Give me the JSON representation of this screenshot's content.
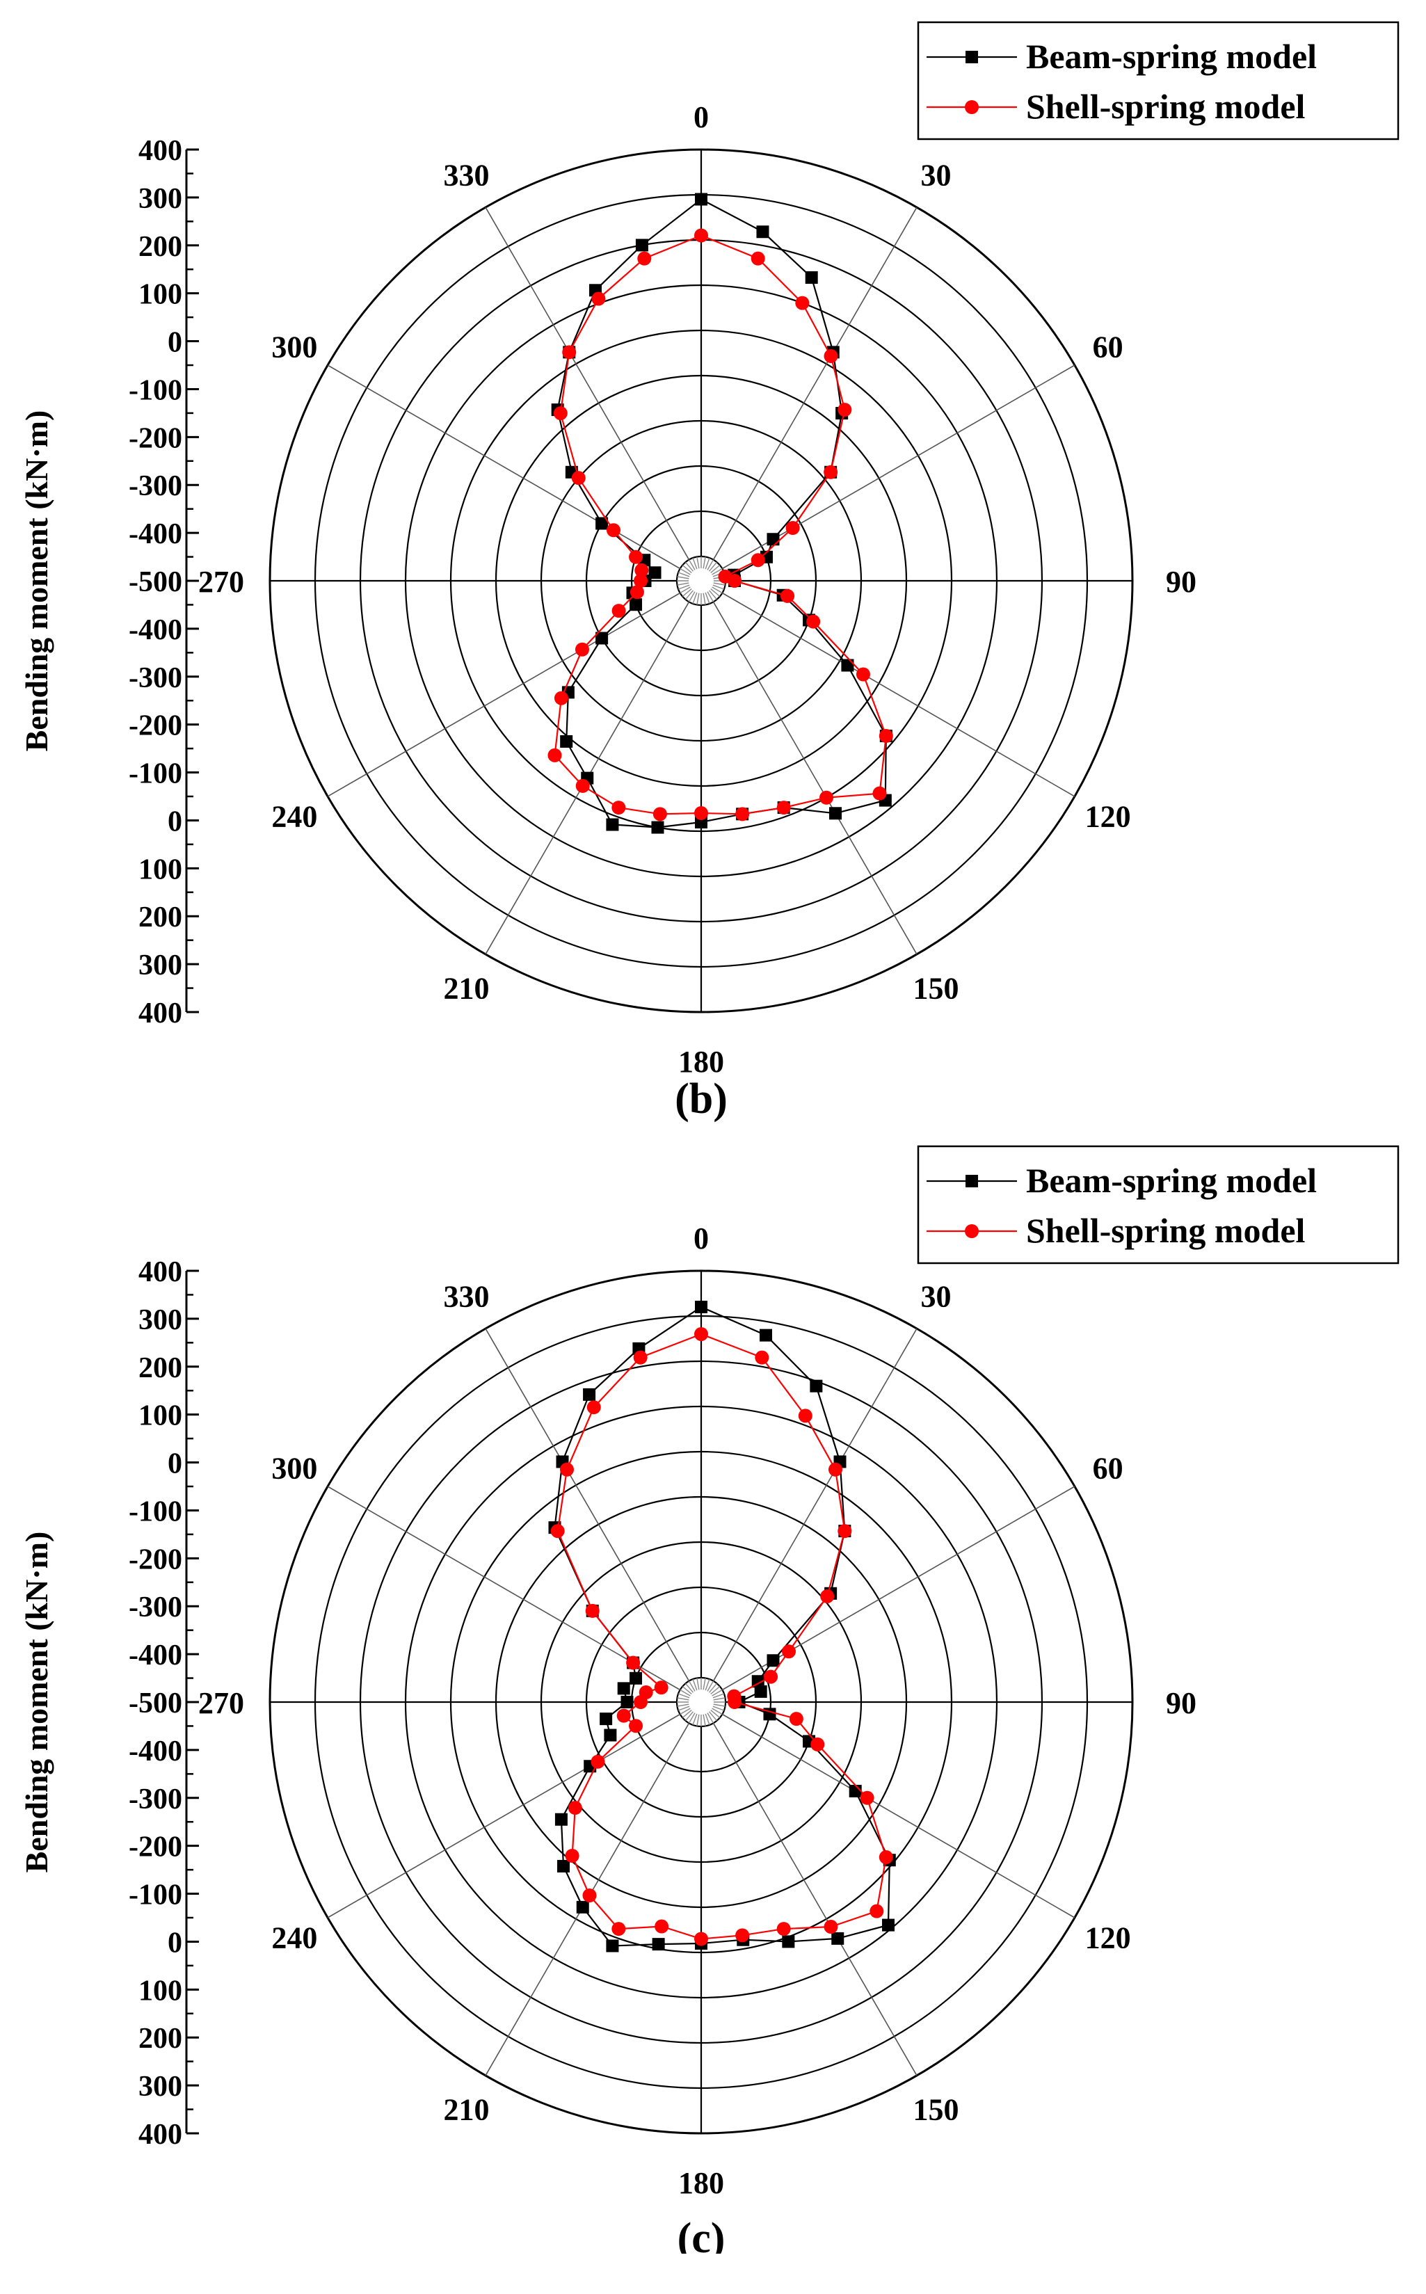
{
  "legend": {
    "beam": "Beam-spring model",
    "shell": "Shell-spring model"
  },
  "colors": {
    "beam": "#000000",
    "shell": "#ff0000",
    "grid": "#000000"
  },
  "chart_data": [
    {
      "type": "polar-line",
      "label": "(b)",
      "ylabel": "Bending moment (kN·m)",
      "radial_ticks": [
        "400",
        "300",
        "200",
        "100",
        "0",
        "-100",
        "-200",
        "-300",
        "-400",
        "-500"
      ],
      "radial_range": [
        -500,
        400
      ],
      "angle_ticks": [
        "0",
        "30",
        "60",
        "90",
        "120",
        "150",
        "180",
        "210",
        "240",
        "270",
        "300",
        "330"
      ],
      "angles": [
        0,
        10,
        20,
        30,
        40,
        50,
        60,
        70,
        80,
        90,
        100,
        110,
        120,
        130,
        140,
        150,
        160,
        170,
        180,
        190,
        200,
        210,
        220,
        230,
        240,
        250,
        260,
        270,
        280,
        290,
        300,
        310,
        320,
        330,
        340,
        350
      ],
      "series": [
        {
          "name": "Beam-spring model",
          "marker": "square",
          "values": [
            290,
            230,
            160,
            30,
            -70,
            -180,
            -370,
            -400,
            -480,
            -480,
            -370,
            -300,
            -180,
            -20,
            80,
            40,
            -20,
            -30,
            -20,
            0,
            20,
            -50,
            -90,
            -170,
            -300,
            -400,
            -400,
            -430,
            -450,
            -420,
            -300,
            -180,
            -60,
            30,
            130,
            200
          ]
        },
        {
          "name": "Shell-spring model",
          "marker": "circle",
          "values": [
            210,
            170,
            100,
            20,
            -60,
            -180,
            -320,
            -420,
            -500,
            -480,
            -360,
            -290,
            -140,
            -20,
            60,
            0,
            -20,
            -30,
            -40,
            -30,
            -20,
            -30,
            -50,
            -150,
            -250,
            -360,
            -410,
            -420,
            -420,
            -400,
            -330,
            -200,
            -70,
            30,
            110,
            170
          ]
        }
      ]
    },
    {
      "type": "polar-line",
      "label": "(c)",
      "ylabel": "Bending moment (kN·m)",
      "radial_ticks": [
        "400",
        "300",
        "200",
        "100",
        "0",
        "-100",
        "-200",
        "-300",
        "-400",
        "-500"
      ],
      "radial_range": [
        -500,
        400
      ],
      "angle_ticks": [
        "0",
        "30",
        "60",
        "90",
        "120",
        "150",
        "180",
        "210",
        "240",
        "270",
        "300",
        "330"
      ],
      "angles": [
        0,
        10,
        20,
        30,
        40,
        50,
        60,
        70,
        80,
        90,
        100,
        110,
        120,
        130,
        140,
        150,
        160,
        170,
        180,
        190,
        200,
        210,
        220,
        230,
        240,
        250,
        260,
        270,
        280,
        290,
        300,
        310,
        320,
        330,
        340,
        350
      ],
      "series": [
        {
          "name": "Beam-spring model",
          "marker": "square",
          "values": [
            320,
            270,
            190,
            60,
            -60,
            -180,
            -370,
            -420,
            -420,
            -470,
            -400,
            -300,
            -160,
            -10,
            90,
            50,
            10,
            -20,
            -20,
            -10,
            20,
            -30,
            -80,
            -150,
            -270,
            -340,
            -340,
            -390,
            -380,
            -400,
            -380,
            -240,
            -50,
            60,
            170,
            240
          ]
        },
        {
          "name": "Shell-spring model",
          "marker": "circle",
          "values": [
            260,
            220,
            120,
            40,
            -60,
            -190,
            -330,
            -390,
            -480,
            -480,
            -340,
            -280,
            -130,
            -20,
            50,
            20,
            -20,
            -30,
            -30,
            -50,
            -20,
            -60,
            -110,
            -190,
            -290,
            -400,
            -380,
            -420,
            -430,
            -460,
            -380,
            -240,
            -60,
            40,
            140,
            220
          ]
        }
      ]
    }
  ]
}
